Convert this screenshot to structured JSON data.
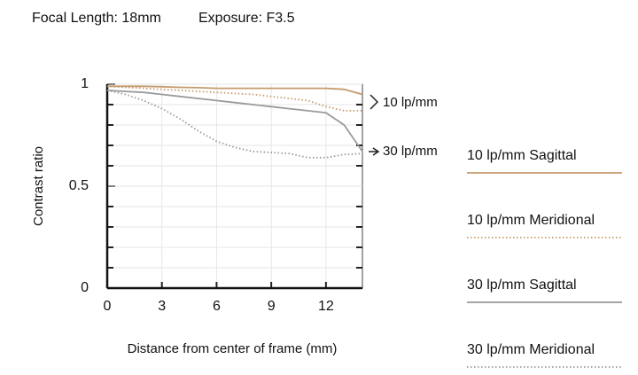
{
  "chart_data": {
    "type": "line",
    "title": "Focal Length: 18mm",
    "subtitle": "Exposure: F3.5",
    "x_label": "Distance from center of frame (mm)",
    "y_label": "Contrast ratio",
    "annotations": [
      "10 lp/mm",
      "30 lp/mm"
    ],
    "x": [
      0,
      1,
      2,
      3,
      4,
      5,
      6,
      7,
      8,
      9,
      10,
      11,
      12,
      13,
      14
    ],
    "series": [
      {
        "name": "10 lp/mm Sagittal",
        "color": "#c49a6c",
        "style": "solid",
        "values": [
          0.99,
          0.99,
          0.99,
          0.988,
          0.985,
          0.983,
          0.98,
          0.98,
          0.98,
          0.98,
          0.98,
          0.98,
          0.98,
          0.975,
          0.95
        ]
      },
      {
        "name": "10 lp/mm Meridional",
        "color": "#c49a6c",
        "style": "dotted",
        "values": [
          0.99,
          0.985,
          0.98,
          0.975,
          0.97,
          0.965,
          0.96,
          0.955,
          0.95,
          0.94,
          0.93,
          0.92,
          0.89,
          0.87,
          0.87
        ]
      },
      {
        "name": "30 lp/mm Sagittal",
        "color": "#9a9a9a",
        "style": "solid",
        "values": [
          0.97,
          0.965,
          0.96,
          0.95,
          0.94,
          0.93,
          0.92,
          0.91,
          0.9,
          0.89,
          0.88,
          0.87,
          0.86,
          0.8,
          0.67
        ]
      },
      {
        "name": "30 lp/mm Meridional",
        "color": "#9a9a9a",
        "style": "dotted",
        "values": [
          0.97,
          0.95,
          0.92,
          0.88,
          0.83,
          0.77,
          0.72,
          0.69,
          0.67,
          0.665,
          0.66,
          0.64,
          0.64,
          0.655,
          0.66
        ]
      }
    ],
    "xlim": [
      0,
      14
    ],
    "xticks": [
      0,
      3,
      6,
      9,
      12
    ],
    "ylim": [
      0,
      1
    ],
    "yticks": [
      0,
      0.5,
      1
    ],
    "yminorticks": [
      0.1,
      0.2,
      0.3,
      0.4,
      0.6,
      0.7,
      0.8,
      0.9
    ],
    "grid": true
  }
}
